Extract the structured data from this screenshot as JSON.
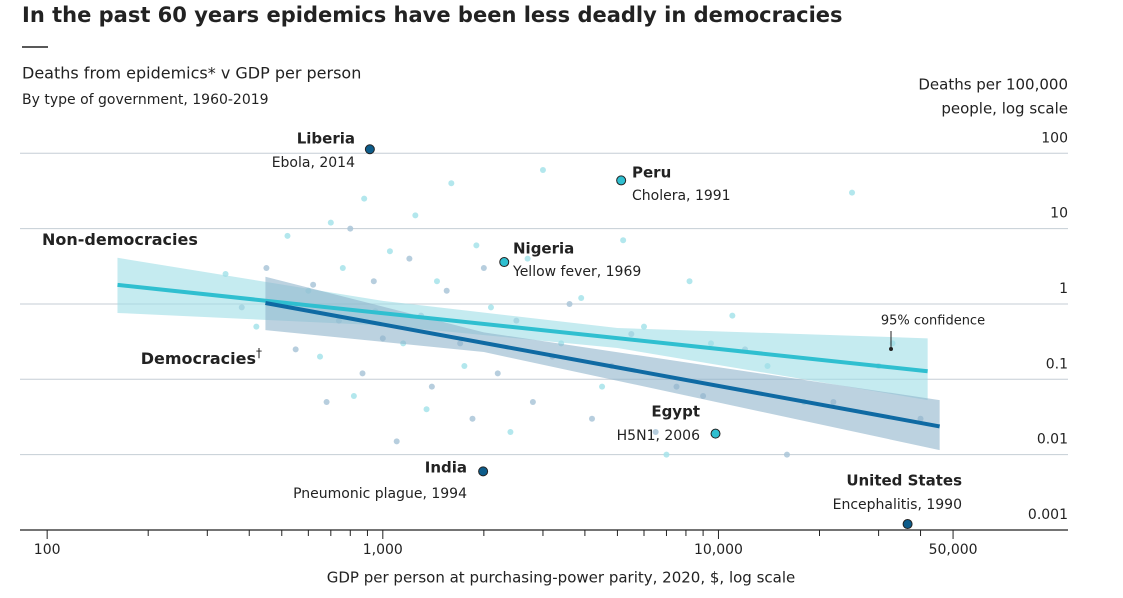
{
  "chart_data": {
    "type": "scatter",
    "title": "In the past 60 years epidemics have been less deadly in democracies",
    "subtitle": "Deaths from epidemics* v GDP per person",
    "subsubtitle": "By type of government, 1960-2019",
    "ylabel": [
      "Deaths per 100,000",
      "people, log scale"
    ],
    "xlabel": "GDP per person at purchasing-power parity, 2020, $, log scale",
    "xscale": "log",
    "yscale": "log",
    "grid": true,
    "xlim": [
      83,
      110000
    ],
    "ylim": [
      0.001,
      150
    ],
    "xticks": [
      100,
      {
        "value": 1000,
        "label": "1,000"
      },
      {
        "value": 10000,
        "label": "10,000"
      },
      {
        "value": 50000,
        "label": "50,000"
      }
    ],
    "xminor_ticks": [
      200,
      300,
      400,
      500,
      600,
      700,
      800,
      900,
      2000,
      3000,
      4000,
      5000,
      6000,
      7000,
      8000,
      9000,
      20000,
      30000,
      40000
    ],
    "yticks": [
      100,
      10,
      1,
      0.1,
      0.01,
      0.001
    ],
    "series": [
      {
        "name": "Non-democracies",
        "color": "#a6e3ea",
        "x": [
          340,
          420,
          520,
          600,
          650,
          700,
          760,
          820,
          880,
          950,
          1050,
          1150,
          1250,
          1350,
          1450,
          1600,
          1750,
          1900,
          2100,
          2400,
          2700,
          3000,
          3400,
          3900,
          4500,
          5200,
          6000,
          7000,
          8200,
          9500,
          11000,
          14000,
          18000,
          25000,
          33000
        ],
        "values": [
          2.5,
          0.5,
          8,
          1.5,
          0.2,
          12,
          3,
          0.06,
          25,
          0.8,
          5,
          0.3,
          15,
          0.04,
          2,
          40,
          0.15,
          6,
          0.9,
          0.02,
          4,
          60,
          0.3,
          1.2,
          0.08,
          7,
          0.5,
          0.01,
          2,
          0.3,
          0.7,
          0.15,
          0.05,
          30,
          0.3
        ]
      },
      {
        "name": "Democracies",
        "color": "#aac6d8",
        "x": [
          380,
          450,
          550,
          620,
          680,
          740,
          800,
          870,
          940,
          1000,
          1100,
          1200,
          1300,
          1400,
          1550,
          1700,
          1850,
          2000,
          2200,
          2500,
          2800,
          3200,
          3600,
          4200,
          4800,
          5500,
          6500,
          7500,
          9000,
          12000,
          16000,
          22000,
          30000,
          40000
        ],
        "values": [
          0.9,
          3,
          0.25,
          1.8,
          0.05,
          0.6,
          10,
          0.12,
          2,
          0.35,
          0.015,
          4,
          0.7,
          0.08,
          1.5,
          0.3,
          0.03,
          3,
          0.12,
          0.6,
          0.05,
          0.2,
          1,
          0.03,
          0.15,
          0.4,
          0.02,
          0.08,
          0.06,
          0.25,
          0.01,
          0.05,
          0.15,
          0.03
        ]
      }
    ],
    "trend_lines": [
      {
        "name": "Non-democracies",
        "color": "#2fbfd0",
        "band_color": "#9fdde6",
        "x": [
          162,
          42000
        ],
        "values": [
          1.79,
          0.128
        ],
        "band_x": [
          162,
          1000,
          5000,
          42000
        ],
        "band_upper": [
          4.1,
          1.1,
          0.48,
          0.35
        ],
        "band_lower": [
          0.76,
          0.52,
          0.26,
          0.053
        ]
      },
      {
        "name": "Democracies",
        "footnote_mark": "†",
        "color": "#0f6aa3",
        "band_color": "#8fb4cc",
        "x": [
          447,
          45600
        ],
        "values": [
          1.03,
          0.0237
        ],
        "band_x": [
          447,
          2000,
          45600
        ],
        "band_upper": [
          2.3,
          0.42,
          0.053
        ],
        "band_lower": [
          0.45,
          0.23,
          0.0115
        ]
      }
    ],
    "annotation": "95% confidence",
    "highlights": [
      {
        "name": "Liberia",
        "note": "Ebola, 2014",
        "x": 915,
        "y": 113,
        "color": "#0d5c8a"
      },
      {
        "name": "Peru",
        "note": "Cholera, 1991",
        "x": 5130,
        "y": 43.6,
        "color": "#2fbfd0"
      },
      {
        "name": "Nigeria",
        "note": "Yellow fever, 1969",
        "x": 2300,
        "y": 3.6,
        "color": "#2fbfd0"
      },
      {
        "name": "India",
        "note": "Pneumonic plague, 1994",
        "x": 1990,
        "y": 0.006,
        "color": "#0d5c8a"
      },
      {
        "name": "Egypt",
        "note": "H5N1, 2006",
        "x": 9800,
        "y": 0.019,
        "color": "#2fbfd0"
      },
      {
        "name": "United States",
        "note": "Encephalitis, 1990",
        "x": 36600,
        "y": 0.0012,
        "color": "#0d5c8a"
      }
    ]
  }
}
